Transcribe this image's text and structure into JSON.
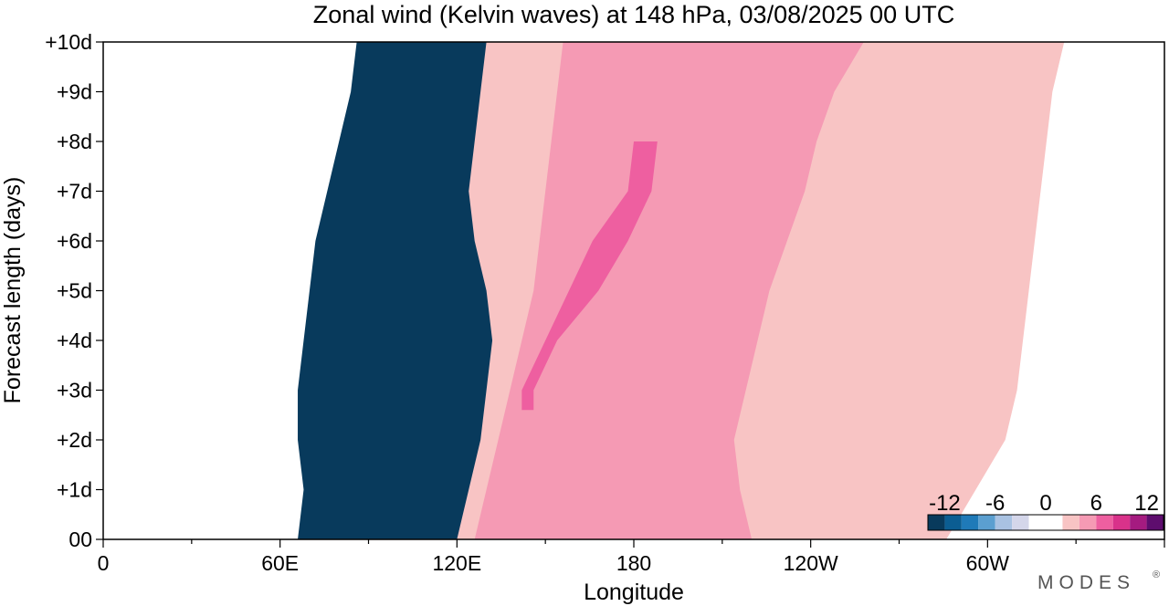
{
  "chart_data": {
    "type": "heatmap",
    "title": "Zonal wind (Kelvin waves) at 148 hPa,  03/08/2025  00 UTC",
    "xlabel": "Longitude",
    "ylabel": "Forecast length (days)",
    "x_ticks": [
      "0",
      "60E",
      "120E",
      "180",
      "120W",
      "60W"
    ],
    "x_tick_degrees": [
      0,
      60,
      120,
      180,
      240,
      300
    ],
    "x_range": [
      0,
      360
    ],
    "y_ticks": [
      "00",
      "+1d",
      "+2d",
      "+3d",
      "+4d",
      "+5d",
      "+6d",
      "+7d",
      "+8d",
      "+9d",
      "+10d"
    ],
    "y_range": [
      0,
      10
    ],
    "colorbar": {
      "tick_labels": [
        "-12",
        "-6",
        "0",
        "6",
        "12"
      ],
      "tick_values": [
        -12,
        -6,
        0,
        6,
        12
      ],
      "levels": [
        -14,
        -12,
        -10,
        -8,
        -6,
        -4,
        -2,
        2,
        4,
        6,
        8,
        10,
        12,
        14
      ],
      "colors": [
        "#083a5c",
        "#0b5d92",
        "#1f7ab8",
        "#5b9fd0",
        "#a9c2e2",
        "#d4d6ea",
        "#ffffff",
        "#f8c4c4",
        "#f59ab4",
        "#ee5fa0",
        "#d9328a",
        "#a51b80",
        "#5e0d6e"
      ]
    },
    "fields": [
      {
        "level": -2,
        "color": "#d4d6ea",
        "left": [
          [
            0,
            112
          ],
          [
            2,
            118
          ],
          [
            4,
            120
          ],
          [
            6,
            124
          ],
          [
            8,
            126
          ],
          [
            10,
            150
          ]
        ],
        "right": [
          [
            0,
            98
          ],
          [
            1,
            100
          ],
          [
            2,
            106
          ],
          [
            3,
            100
          ],
          [
            4,
            104
          ],
          [
            5,
            106
          ],
          [
            6,
            112
          ],
          [
            7,
            108
          ],
          [
            8,
            112
          ],
          [
            9,
            108
          ],
          [
            10,
            108
          ]
        ]
      },
      {
        "level": -4,
        "color": "#a9c2e2",
        "left": [
          [
            0,
            118
          ],
          [
            2,
            122
          ],
          [
            4,
            124
          ],
          [
            6,
            128
          ],
          [
            8,
            130
          ],
          [
            10,
            160
          ]
        ],
        "right": [
          [
            0,
            91
          ],
          [
            1,
            93
          ],
          [
            2,
            95
          ],
          [
            3,
            90
          ],
          [
            4,
            94
          ],
          [
            5,
            96
          ],
          [
            6,
            98
          ],
          [
            7,
            104
          ],
          [
            8,
            102
          ],
          [
            9,
            100
          ],
          [
            10,
            100
          ]
        ]
      },
      {
        "level": -6,
        "color": "#5b9fd0",
        "left": [
          [
            0,
            122
          ],
          [
            2,
            128
          ],
          [
            4,
            130
          ],
          [
            6,
            134
          ],
          [
            8,
            138
          ],
          [
            10,
            166
          ]
        ],
        "right": [
          [
            0,
            83
          ],
          [
            1,
            85
          ],
          [
            2,
            86
          ],
          [
            3,
            84
          ],
          [
            4,
            86
          ],
          [
            5,
            88
          ],
          [
            6,
            90
          ],
          [
            7,
            92
          ],
          [
            8,
            96
          ],
          [
            9,
            95
          ],
          [
            10,
            96
          ]
        ]
      },
      {
        "level": -8,
        "color": "#1f7ab8",
        "left": [
          [
            0,
            128
          ],
          [
            2,
            133
          ],
          [
            4,
            134
          ],
          [
            6,
            139
          ],
          [
            8,
            142
          ],
          [
            10,
            170
          ]
        ],
        "right": [
          [
            0,
            77
          ],
          [
            1,
            78
          ],
          [
            2,
            80
          ],
          [
            3,
            78
          ],
          [
            4,
            80
          ],
          [
            5,
            82
          ],
          [
            6,
            84
          ],
          [
            7,
            86
          ],
          [
            8,
            89
          ],
          [
            9,
            92
          ],
          [
            10,
            94
          ]
        ]
      },
      {
        "level": -10,
        "color": "#0b5d92",
        "left": [
          [
            0,
            132
          ],
          [
            2,
            136
          ],
          [
            4,
            138
          ],
          [
            6,
            142
          ],
          [
            8,
            146
          ],
          [
            10,
            174
          ]
        ],
        "right": [
          [
            0,
            72
          ],
          [
            1,
            73
          ],
          [
            2,
            74
          ],
          [
            3,
            72
          ],
          [
            4,
            74
          ],
          [
            5,
            76
          ],
          [
            6,
            78
          ],
          [
            7,
            80
          ],
          [
            8,
            84
          ],
          [
            9,
            88
          ],
          [
            10,
            90
          ]
        ]
      },
      {
        "level": -12,
        "color": "#083a5c",
        "left": [
          [
            0,
            138
          ],
          [
            2,
            142
          ],
          [
            4,
            144
          ],
          [
            6,
            148
          ],
          [
            8,
            152
          ],
          [
            10,
            178
          ]
        ],
        "right": [
          [
            0,
            66
          ],
          [
            1,
            68
          ],
          [
            2,
            66
          ],
          [
            3,
            66
          ],
          [
            4,
            68
          ],
          [
            5,
            70
          ],
          [
            6,
            72
          ],
          [
            7,
            76
          ],
          [
            8,
            80
          ],
          [
            9,
            84
          ],
          [
            10,
            86
          ]
        ]
      },
      {
        "level": 2,
        "color": "#f8c4c4",
        "left": [
          [
            0,
            120
          ],
          [
            1,
            124
          ],
          [
            2,
            128
          ],
          [
            3,
            130
          ],
          [
            4,
            132
          ],
          [
            5,
            130
          ],
          [
            6,
            126
          ],
          [
            7,
            124
          ],
          [
            8,
            126
          ],
          [
            9,
            128
          ],
          [
            10,
            130
          ]
        ],
        "right": [
          [
            0,
            286
          ],
          [
            1,
            296
          ],
          [
            2,
            306
          ],
          [
            3,
            310
          ],
          [
            4,
            312
          ],
          [
            5,
            314
          ],
          [
            6,
            316
          ],
          [
            7,
            318
          ],
          [
            8,
            320
          ],
          [
            9,
            322
          ],
          [
            10,
            326
          ]
        ]
      },
      {
        "level": 4,
        "color": "#f59ab4",
        "left": [
          [
            0,
            126
          ],
          [
            1,
            130
          ],
          [
            2,
            134
          ],
          [
            3,
            138
          ],
          [
            4,
            142
          ],
          [
            5,
            146
          ],
          [
            6,
            148
          ],
          [
            7,
            150
          ],
          [
            8,
            152
          ],
          [
            9,
            154
          ],
          [
            10,
            156
          ]
        ],
        "right": [
          [
            0,
            220
          ],
          [
            1,
            216
          ],
          [
            2,
            214
          ],
          [
            3,
            218
          ],
          [
            4,
            222
          ],
          [
            5,
            226
          ],
          [
            6,
            232
          ],
          [
            7,
            238
          ],
          [
            8,
            242
          ],
          [
            9,
            248
          ],
          [
            10,
            258
          ]
        ]
      },
      {
        "level": 6,
        "color": "#ee5fa0",
        "left": [
          [
            2.6,
            142
          ],
          [
            3,
            142
          ],
          [
            4,
            150
          ],
          [
            5,
            158
          ],
          [
            6,
            166
          ],
          [
            7,
            178
          ],
          [
            8,
            180
          ]
        ],
        "right": [
          [
            2.6,
            146
          ],
          [
            3,
            146
          ],
          [
            4,
            154
          ],
          [
            5,
            168
          ],
          [
            6,
            178
          ],
          [
            7,
            186
          ],
          [
            8,
            188
          ]
        ]
      }
    ]
  }
}
